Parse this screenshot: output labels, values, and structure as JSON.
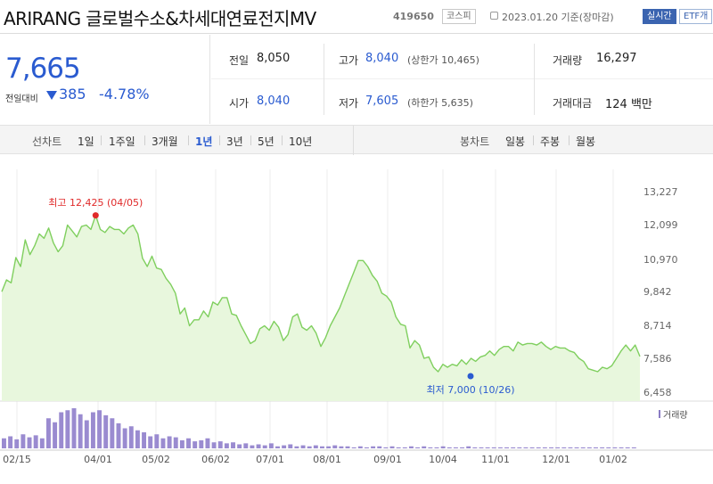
{
  "header": {
    "title": "ARIRANG 글로벌수소&차세대연료전지MV",
    "code": "419650",
    "market_badge": "코스피",
    "date_text": "2023.01.20 기준(장마감)",
    "realtime_badge": "실시간",
    "etf_badge": "ETF개"
  },
  "price": {
    "current": "7,665",
    "change_label": "전일대비",
    "change_value": "385",
    "change_pct": "-4.78%",
    "color": "#2a5bd0"
  },
  "stats": {
    "prev_close_label": "전일",
    "prev_close": "8,050",
    "open_label": "시가",
    "open": "8,040",
    "high_label": "고가",
    "high": "8,040",
    "upper_limit": "(상한가 10,465)",
    "low_label": "저가",
    "low": "7,605",
    "lower_limit": "(하한가 5,635)",
    "volume_label": "거래량",
    "volume": "16,297",
    "amount_label": "거래대금",
    "amount": "124 백만"
  },
  "tabs": {
    "line_label": "선차트",
    "line_periods": [
      "1일",
      "1주일",
      "3개월",
      "1년",
      "3년",
      "5년",
      "10년"
    ],
    "active": "1년",
    "candle_label": "봉차트",
    "candle_periods": [
      "일봉",
      "주봉",
      "월봉"
    ]
  },
  "chart_data": {
    "type": "area",
    "title": "",
    "xlabel": "",
    "ylabel": "",
    "x_ticks": [
      "02/15",
      "04/01",
      "05/02",
      "06/02",
      "07/01",
      "08/01",
      "09/01",
      "10/04",
      "11/01",
      "12/01",
      "01/02"
    ],
    "y_ticks": [
      "13,227",
      "12,099",
      "10,970",
      "9,842",
      "8,714",
      "7,586",
      "6,458"
    ],
    "ylim": [
      6458,
      13227
    ],
    "grid": "vertical",
    "colors": {
      "line": "#7fcf5e",
      "fill": "#e8f7dd",
      "max_marker": "#e02a2a",
      "min_marker": "#2a5bd0",
      "volume": "#9a8bd0"
    },
    "max_annotation": "최고 12,425 (04/05)",
    "min_annotation": "최저 7,000 (10/26)",
    "max_point": {
      "date": "04/05",
      "value": 12425
    },
    "min_point": {
      "date": "10/26",
      "value": 7000
    },
    "volume_legend": "거래량",
    "series": [
      {
        "values": [
          9850,
          10250,
          10150,
          11000,
          10700,
          11600,
          11100,
          11400,
          11800,
          11650,
          12000,
          11500,
          11200,
          11400,
          12100,
          11900,
          11700,
          12050,
          12100,
          11950,
          12425,
          11950,
          11850,
          12050,
          11950,
          11950,
          11800,
          12000,
          12100,
          11800,
          10980,
          10700,
          11050,
          10650,
          10600,
          10300,
          10100,
          9800,
          9100,
          9300,
          8700,
          8900,
          8900,
          9200,
          9000,
          9500,
          9400,
          9650,
          9650,
          9100,
          9050,
          8700,
          8400,
          8100,
          8200,
          8600,
          8700,
          8550,
          8850,
          8650,
          8200,
          8400,
          9000,
          9100,
          8650,
          8550,
          8700,
          8450,
          8000,
          8300,
          8700,
          9000,
          9300,
          9700,
          10100,
          10500,
          10900,
          10900,
          10700,
          10400,
          10200,
          9800,
          9700,
          9500,
          9000,
          8750,
          8700,
          7950,
          8200,
          8050,
          7600,
          7650,
          7300,
          7150,
          7400,
          7300,
          7400,
          7350,
          7550,
          7400,
          7600,
          7500,
          7650,
          7700,
          7850,
          7700,
          7900,
          8000,
          8000,
          7850,
          8150,
          8050,
          8100,
          8100,
          8050,
          8150,
          8000,
          7900,
          8000,
          7950,
          7950,
          7850,
          7800,
          7600,
          7500,
          7250,
          7200,
          7150,
          7300,
          7250,
          7350,
          7600,
          7850,
          8050,
          7850,
          8050,
          7665
        ]
      }
    ],
    "volume": [
      10,
      12,
      9,
      14,
      11,
      13,
      10,
      30,
      26,
      36,
      38,
      40,
      34,
      28,
      36,
      38,
      33,
      30,
      25,
      20,
      22,
      18,
      16,
      12,
      14,
      10,
      12,
      11,
      8,
      10,
      7,
      8,
      10,
      6,
      7,
      5,
      6,
      4,
      5,
      3,
      4,
      3,
      5,
      2,
      3,
      4,
      2,
      3,
      2,
      3,
      2,
      2,
      3,
      2,
      2,
      1,
      2,
      1,
      2,
      2,
      1,
      2,
      1,
      1,
      2,
      1,
      2,
      1,
      1,
      2,
      1,
      1,
      1,
      2,
      1,
      1,
      1,
      1,
      1,
      1,
      1,
      1,
      1,
      1,
      1,
      1,
      1,
      1,
      1,
      1,
      1,
      1,
      1,
      1,
      1,
      1,
      1,
      1,
      1,
      1
    ]
  }
}
